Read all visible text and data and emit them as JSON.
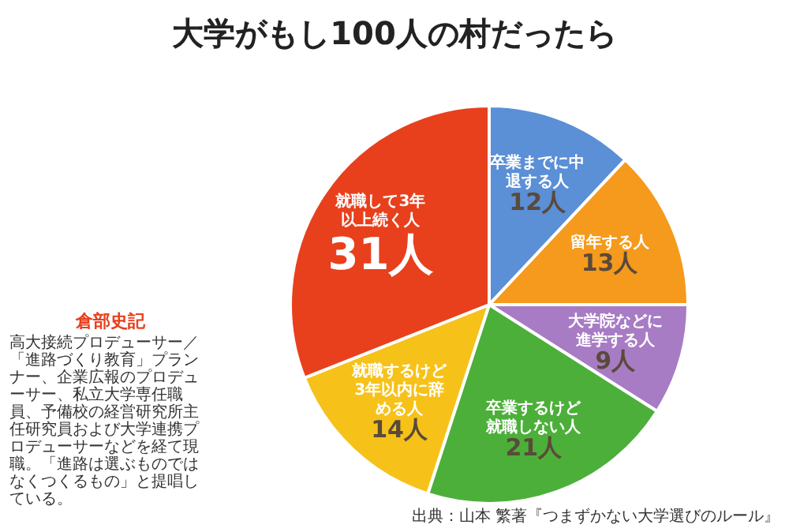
{
  "chart_data": {
    "type": "pie",
    "title": "大学がもし100人の村だったら",
    "categories": [
      "卒業までに中退する人",
      "留年する人",
      "大学院などに進学する人",
      "卒業するけど就職しない人",
      "就職するけど3年以内に辞める人",
      "就職して3年以上続く人"
    ],
    "values": [
      12,
      13,
      9,
      21,
      14,
      31
    ],
    "value_labels": [
      "12人",
      "13人",
      "9人",
      "21人",
      "14人",
      "31人"
    ],
    "colors": [
      "#5b8fd6",
      "#f59a1c",
      "#a77cc4",
      "#4caf3a",
      "#f6c21a",
      "#e8401c"
    ],
    "legend": false,
    "annotations": [
      "倉部史記",
      "高大接続プロデューサー／「進路づくり教育」プランナー、企業広報のプロデューサー、私立大学専任職員、予備校の経営研究所主任研究員および大学連携プロデューサーなどを経て現職。「進路は選ぶものではなくつくるもの」と提唱している。",
      "出典：山本 繁著『つまずかない大学選びのルール』"
    ]
  }
}
